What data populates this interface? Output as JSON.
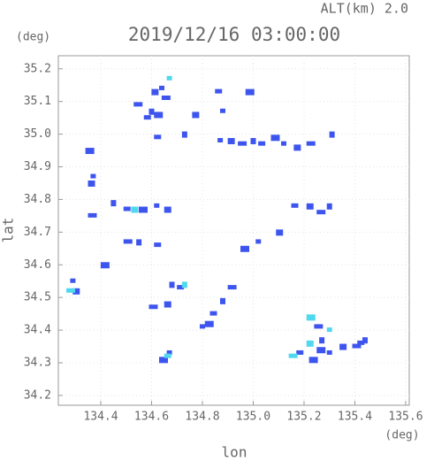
{
  "chart_data": {
    "type": "scatter",
    "title": "2019/12/16 03:00:00",
    "subtitle": "ALT(km)  2.0",
    "x_unit": "(deg)",
    "y_unit": "(deg)",
    "x_label": "lon",
    "y_label": "lat",
    "xlim": [
      134.233,
      135.614
    ],
    "ylim": [
      34.17,
      35.24
    ],
    "xticks": [
      134.4,
      134.6,
      134.8,
      {
        "value": 135.0,
        "label": "135.0"
      },
      135.2,
      135.4,
      135.6
    ],
    "yticks": [
      34.2,
      34.3,
      34.4,
      34.5,
      34.6,
      34.7,
      34.8,
      34.9,
      {
        "value": 35.0,
        "label": "35.0"
      },
      35.1,
      35.2
    ],
    "grid": true,
    "series": [
      {
        "color": "#3d55ee",
        "x": [
          134.64,
          134.61,
          134.65,
          134.6,
          134.58,
          134.62,
          134.87,
          134.91,
          134.95,
          135.0,
          135.03,
          135.08,
          135.12,
          135.17,
          135.22,
          135.31,
          134.86,
          134.98,
          134.88,
          134.77,
          134.54,
          134.73,
          134.62,
          134.35,
          134.37,
          134.36,
          134.36,
          134.45,
          134.5,
          134.56,
          134.62,
          134.66,
          134.5,
          134.55,
          134.62,
          134.41,
          134.29,
          134.3,
          134.91,
          134.88,
          134.84,
          134.82,
          134.8,
          134.66,
          134.6,
          134.68,
          134.71,
          134.64,
          134.67,
          135.22,
          135.26,
          135.3,
          135.16,
          134.96,
          135.02,
          135.1,
          135.25,
          135.27,
          135.18,
          135.23,
          135.3,
          135.35,
          135.4,
          135.44,
          135.42,
          135.26
        ],
        "values": [
          35.14,
          35.13,
          35.11,
          35.07,
          35.05,
          35.06,
          34.98,
          34.98,
          34.97,
          34.98,
          34.97,
          34.99,
          34.97,
          34.96,
          34.97,
          35.0,
          35.13,
          35.13,
          35.07,
          35.06,
          35.09,
          35.0,
          34.99,
          34.95,
          34.87,
          34.85,
          34.75,
          34.79,
          34.77,
          34.77,
          34.78,
          34.77,
          34.67,
          34.67,
          34.66,
          34.6,
          34.55,
          34.52,
          34.53,
          34.49,
          34.45,
          34.42,
          34.41,
          34.48,
          34.47,
          34.54,
          34.53,
          34.31,
          34.33,
          34.78,
          34.76,
          34.78,
          34.78,
          34.65,
          34.67,
          34.7,
          34.41,
          34.37,
          34.33,
          34.31,
          34.33,
          34.35,
          34.35,
          34.37,
          34.36,
          34.34
        ]
      },
      {
        "color": "#4fd8ee",
        "x": [
          134.67,
          134.53,
          134.275,
          134.73,
          134.66,
          135.22,
          135.3,
          135.22,
          135.15
        ],
        "values": [
          35.17,
          34.77,
          34.52,
          34.54,
          34.32,
          34.44,
          34.4,
          34.36,
          34.32
        ]
      }
    ]
  }
}
